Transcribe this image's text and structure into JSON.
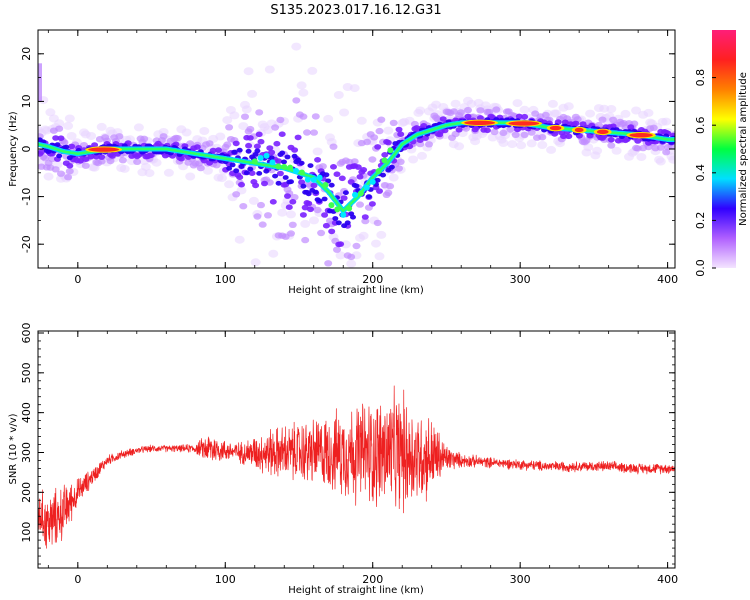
{
  "figure": {
    "title": "S135.2023.017.16.12.G31"
  },
  "chart_data": [
    {
      "type": "heatmap",
      "xlabel": "Height of straight line (km)",
      "ylabel": "Frequency (Hz)",
      "xlim": [
        -27,
        405
      ],
      "ylim": [
        -25,
        25
      ],
      "x_ticks": [
        0,
        100,
        200,
        300,
        400
      ],
      "y_ticks": [
        -20,
        -10,
        0,
        10,
        20
      ],
      "grid": false,
      "ridge": {
        "x": [
          -27,
          -20,
          -10,
          0,
          20,
          40,
          60,
          80,
          100,
          120,
          140,
          160,
          170,
          180,
          190,
          200,
          210,
          220,
          230,
          240,
          250,
          260,
          280,
          300,
          320,
          340,
          360,
          380,
          400,
          405
        ],
        "y": [
          1,
          0.5,
          -0.5,
          -1,
          0,
          0,
          0,
          -1,
          -2,
          -3,
          -4,
          -6,
          -9,
          -13,
          -10,
          -6,
          -3,
          1,
          3,
          4,
          5,
          5.5,
          5.5,
          5.5,
          4.5,
          4,
          3.5,
          3,
          2,
          2
        ]
      },
      "colorbar": {
        "label": "Normalized spectral amplitude",
        "range": [
          0,
          1
        ],
        "ticks": [
          0.0,
          0.2,
          0.4,
          0.6,
          0.8
        ],
        "tick_labels": [
          "0.0",
          "0.2",
          "0.4",
          "0.6",
          "0.8"
        ],
        "colormap": [
          "#f4e4ff",
          "#b060ff",
          "#3000ff",
          "#00e0ff",
          "#00ff40",
          "#ffff00",
          "#ff8000",
          "#ff2020",
          "#ff1e78"
        ]
      }
    },
    {
      "type": "line",
      "xlabel": "Height of straight line (km)",
      "ylabel": "SNR (10 * v/v)",
      "xlim": [
        -27,
        405
      ],
      "ylim": [
        10,
        605
      ],
      "x_ticks": [
        0,
        100,
        200,
        300,
        400
      ],
      "y_ticks": [
        100,
        200,
        300,
        400,
        500,
        600
      ],
      "grid": false,
      "series": [
        {
          "color": "#ee2020",
          "x": [
            -27,
            -20,
            -10,
            0,
            10,
            20,
            30,
            40,
            50,
            60,
            70,
            80,
            90,
            100,
            110,
            120,
            130,
            140,
            150,
            160,
            170,
            180,
            190,
            200,
            210,
            220,
            230,
            240,
            250,
            260,
            280,
            300,
            320,
            340,
            360,
            380,
            400,
            405
          ],
          "y": [
            150,
            120,
            150,
            200,
            240,
            280,
            295,
            305,
            310,
            310,
            310,
            310,
            310,
            305,
            300,
            300,
            300,
            300,
            300,
            300,
            300,
            300,
            300,
            300,
            300,
            300,
            290,
            290,
            285,
            280,
            275,
            270,
            265,
            265,
            265,
            260,
            260,
            260
          ],
          "spread": [
            70,
            90,
            80,
            40,
            25,
            15,
            12,
            10,
            10,
            10,
            10,
            15,
            50,
            30,
            30,
            50,
            70,
            80,
            90,
            100,
            110,
            130,
            150,
            160,
            170,
            180,
            140,
            120,
            40,
            20,
            15,
            15,
            15,
            15,
            15,
            15,
            15,
            15
          ]
        }
      ]
    }
  ]
}
